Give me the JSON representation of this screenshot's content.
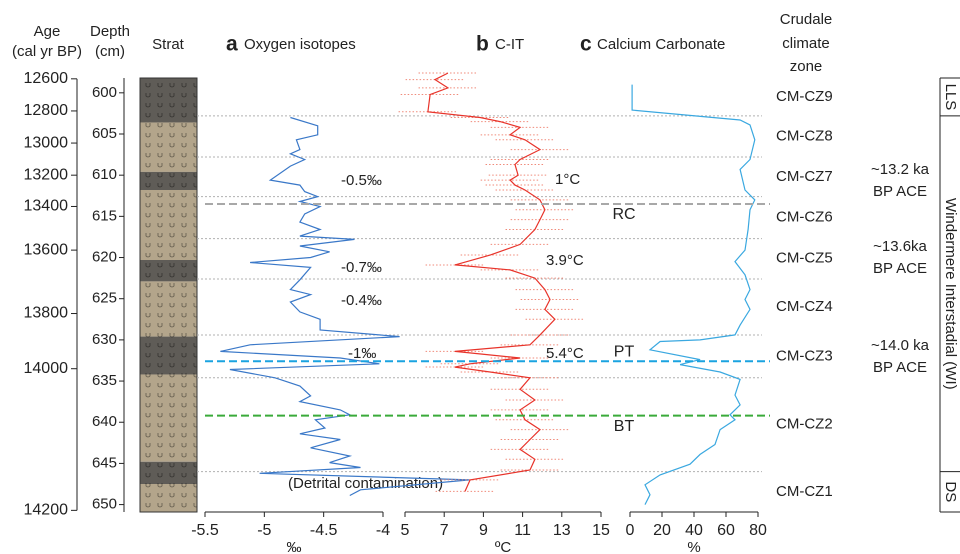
{
  "age_axis": {
    "label": [
      "Age",
      "(cal yr BP)"
    ],
    "ticks": [
      12600,
      12800,
      13000,
      13200,
      13400,
      13600,
      13800,
      14000,
      14200
    ],
    "tick_depths": [
      598.3,
      602.2,
      606.1,
      610.0,
      613.8,
      619.1,
      626.8,
      633.5,
      650.7
    ]
  },
  "depth_axis": {
    "label": [
      "Depth",
      "(cm)"
    ],
    "ylim": [
      598.2,
      650.9
    ],
    "ticks": [
      600,
      605,
      610,
      615,
      620,
      625,
      630,
      635,
      640,
      645,
      650
    ]
  },
  "strat": {
    "title": "Strat",
    "boundaries": [
      603.6,
      609.6,
      611.8,
      620.3,
      622.9,
      629.6,
      634.2,
      644.8,
      647.5
    ],
    "colors": [
      "#5f5c57",
      "#b3a58b",
      "#5f5c57",
      "#b3a58b",
      "#5f5c57",
      "#b3a58b",
      "#5f5c57",
      "#b3a58b",
      "#5f5c57",
      "#b3a58b"
    ]
  },
  "zones": {
    "title": [
      "Crudale",
      "climate",
      "zone"
    ],
    "names": [
      "CM-CZ9",
      "CM-CZ8",
      "CM-CZ7",
      "CM-CZ6",
      "CM-CZ5",
      "CM-CZ4",
      "CM-CZ3",
      "CM-CZ2",
      "CM-CZ1"
    ],
    "boundaries": [
      602.8,
      607.8,
      612.6,
      617.7,
      622.6,
      629.4,
      634.6,
      646.0
    ]
  },
  "events": [
    {
      "label": "RC",
      "depth": 613.5,
      "color": "#a8a8a8"
    },
    {
      "label": "PT",
      "depth": 632.6,
      "color": "#1aa3e0"
    },
    {
      "label": "BT",
      "depth": 639.2,
      "color": "#3aaa3a"
    }
  ],
  "periods": {
    "labels": [
      "LLS",
      "Windermere Interstadial (WI)",
      "DS"
    ],
    "boundaries": [
      602.8,
      646.0
    ]
  },
  "ace": [
    [
      "~13.2 ka",
      "BP ACE"
    ],
    [
      "~13.6ka",
      "BP ACE"
    ],
    [
      "~14.0 ka",
      "BP ACE"
    ]
  ],
  "chart_data": [
    {
      "type": "line",
      "panel": "a",
      "title": "Oxygen isotopes",
      "x_label": "‰",
      "xlim": [
        -5.5,
        -4
      ],
      "xticks": [
        -5.5,
        -5,
        -4.5,
        -4
      ],
      "annotations": [
        "-0.5‰",
        "-0.7‰",
        "-0.4‰",
        "-1‰",
        "(Detrital contamination)"
      ],
      "series": [
        {
          "color": "#3a78c8",
          "depth": [
            603.0,
            604.0,
            605.1,
            605.7,
            606.9,
            607.4,
            608.1,
            608.9,
            610.6,
            611.2,
            612.0,
            612.6,
            613.2,
            613.8,
            614.7,
            615.7,
            616.6,
            617.4,
            617.8,
            618.6,
            619.3,
            620.0,
            620.6,
            621.2,
            622.7,
            623.9,
            624.5,
            625.4,
            626.6,
            627.5,
            628.8,
            629.6,
            630.6,
            631.4,
            632.2,
            632.9,
            633.6,
            634.6,
            635.6,
            636.8,
            637.5,
            638.5,
            639.1,
            639.7,
            640.7,
            641.4,
            642.1,
            643.1,
            644.1,
            644.9,
            645.5,
            646.2,
            647.0,
            648.2,
            648.9
          ],
          "values": [
            -4.78,
            -4.55,
            -4.55,
            -4.73,
            -4.7,
            -4.78,
            -4.66,
            -4.78,
            -4.95,
            -4.7,
            -4.66,
            -4.55,
            -4.7,
            -4.53,
            -4.66,
            -4.7,
            -4.53,
            -4.7,
            -4.24,
            -4.7,
            -4.45,
            -4.61,
            -5.12,
            -4.61,
            -4.7,
            -4.78,
            -4.61,
            -4.78,
            -4.7,
            -4.53,
            -4.53,
            -3.86,
            -5.12,
            -5.37,
            -4.36,
            -4.03,
            -5.29,
            -4.91,
            -4.7,
            -4.61,
            -4.7,
            -4.36,
            -4.28,
            -4.57,
            -4.49,
            -4.7,
            -4.36,
            -4.61,
            -4.28,
            -4.45,
            -4.19,
            -5.04,
            -3.27,
            -4.19,
            -4.28
          ]
        }
      ]
    },
    {
      "type": "line",
      "panel": "b",
      "title": "C-IT",
      "x_label": "ºC",
      "xlim": [
        5,
        15
      ],
      "xticks": [
        5,
        7,
        9,
        11,
        13,
        15
      ],
      "annotations": [
        "1°C",
        "3.9°C",
        "5.4°C"
      ],
      "series": [
        {
          "color": "#e8332a",
          "depth": [
            597.6,
            598.4,
            599.4,
            600.2,
            602.3,
            603.0,
            603.5,
            604.2,
            605.1,
            605.7,
            606.9,
            608.1,
            608.7,
            610.0,
            610.6,
            611.2,
            611.8,
            613.0,
            614.2,
            615.4,
            616.6,
            618.4,
            619.7,
            620.9,
            621.5,
            622.5,
            623.9,
            625.1,
            626.3,
            627.5,
            629.4,
            630.6,
            631.4,
            632.2,
            632.9,
            633.3,
            633.9,
            634.6,
            636.0,
            637.3,
            638.5,
            639.7,
            640.9,
            642.1,
            643.3,
            644.5,
            645.8,
            647.0,
            648.4
          ],
          "values": [
            7.19,
            6.53,
            7.19,
            6.28,
            6.17,
            8.83,
            9.85,
            10.87,
            10.36,
            11.12,
            11.89,
            10.87,
            10.61,
            10.77,
            10.36,
            10.61,
            11.12,
            11.89,
            12.14,
            11.89,
            11.63,
            10.87,
            9.34,
            7.55,
            10.36,
            11.63,
            12.14,
            12.4,
            12.14,
            12.65,
            11.89,
            11.38,
            7.55,
            10.87,
            8.32,
            7.55,
            9.34,
            11.38,
            10.87,
            11.63,
            10.87,
            11.12,
            11.89,
            11.38,
            10.87,
            11.63,
            11.38,
            8.32,
            8.06
          ],
          "errors": [
            1.5,
            1.5,
            1.5,
            1.5,
            1.5,
            1.5,
            1.5,
            1.5,
            1.5,
            1.5,
            1.5,
            1.5,
            1.5,
            1.5,
            1.5,
            1.5,
            1.5,
            1.5,
            1.5,
            1.5,
            1.5,
            1.5,
            1.5,
            1.5,
            1.5,
            1.5,
            1.5,
            1.5,
            1.5,
            1.5,
            1.5,
            1.5,
            1.5,
            1.5,
            1.5,
            1.5,
            1.5,
            1.5,
            1.5,
            1.5,
            1.5,
            1.5,
            1.5,
            1.5,
            1.5,
            1.5,
            1.5,
            1.5,
            1.5
          ],
          "error_color": "#f08a7a"
        }
      ]
    },
    {
      "type": "line",
      "panel": "c",
      "title": "Calcium Carbonate",
      "x_label": "%",
      "xlim": [
        0,
        80
      ],
      "xticks": [
        0,
        20,
        40,
        60,
        80
      ],
      "series": [
        {
          "color": "#3aa8e0",
          "depth": [
            599.0,
            602.1,
            603.3,
            603.9,
            605.7,
            608.1,
            609.3,
            611.8,
            613.0,
            614.2,
            616.6,
            619.1,
            620.5,
            622.1,
            623.9,
            625.1,
            626.3,
            628.2,
            629.4,
            630.0,
            630.2,
            631.2,
            632.4,
            633.0,
            633.9,
            634.8,
            636.7,
            637.9,
            639.1,
            639.7,
            640.9,
            642.7,
            643.9,
            645.1,
            646.4,
            647.6,
            648.8,
            650.0
          ],
          "values": [
            1.3,
            1.3,
            68.8,
            75,
            78,
            75,
            68.8,
            71.9,
            78,
            75,
            73.8,
            71.9,
            65.6,
            71.9,
            75,
            71.9,
            75,
            68.8,
            65.6,
            43.8,
            18.8,
            12.5,
            43.8,
            31.3,
            56.3,
            68.8,
            65.6,
            68.8,
            62.5,
            65.6,
            56.3,
            53.1,
            43.8,
            37.5,
            18.8,
            9.4,
            12.5,
            9.4
          ]
        }
      ]
    }
  ]
}
